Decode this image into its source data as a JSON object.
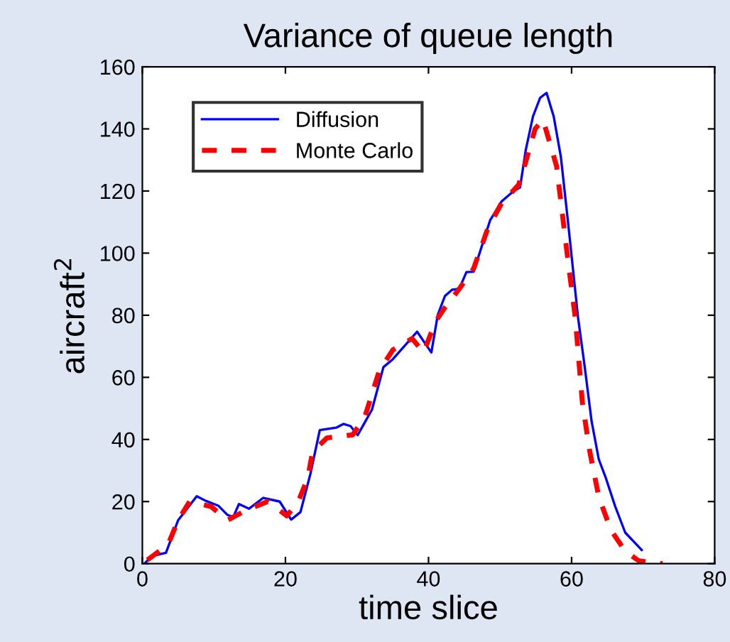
{
  "chart_data": {
    "type": "line",
    "title": "Variance of queue length",
    "xlabel": "time slice",
    "ylabel": "aircraft$^{2}$",
    "xlim": [
      0,
      80
    ],
    "xticks": [
      0,
      20,
      40,
      60,
      80
    ],
    "ylim": [
      0,
      160
    ],
    "yticks": [
      0,
      20,
      40,
      60,
      80,
      100,
      120,
      140,
      160
    ],
    "grid": false,
    "legend": "top left",
    "series": [
      {
        "name": "Diffusion",
        "color": "#0000ff",
        "line_style": "solid",
        "x": [
          0.3,
          1.3,
          3.3,
          5,
          7.6,
          8.9,
          10.6,
          11.9,
          12.7,
          13.5,
          14.9,
          16.9,
          19.2,
          20.8,
          22.1,
          23.5,
          24.8,
          27.1,
          28.1,
          29.1,
          30.1,
          32.1,
          33.7,
          35,
          38.4,
          40.4,
          41.3,
          42.3,
          43.3,
          44.3,
          45.3,
          46.3,
          48.6,
          50.2,
          51.9,
          52.8,
          53.6,
          54.6,
          55.6,
          56.5,
          57.5,
          58.5,
          59.5,
          60.9,
          61.8,
          62.8,
          63.8,
          64.8,
          66.1,
          67.5,
          69.8
        ],
        "values": [
          0,
          2.4,
          3.5,
          14,
          21.7,
          20.2,
          18.7,
          15.7,
          15,
          19.2,
          17.7,
          21.2,
          20,
          14.2,
          16.6,
          29,
          43,
          43.8,
          45,
          44.3,
          41.4,
          49.6,
          63.3,
          65.8,
          74.7,
          68,
          80.2,
          86.2,
          88.2,
          88.5,
          93.9,
          94,
          110.5,
          116.6,
          120,
          121.2,
          133.3,
          144,
          150,
          151.6,
          144,
          131,
          110,
          79.3,
          64,
          45.8,
          33.6,
          27.5,
          18.4,
          10,
          4.4
        ]
      },
      {
        "name": "Monte Carlo",
        "color": "#ff0000",
        "line_style": "dashed",
        "x": [
          0.7,
          3.6,
          5,
          6.6,
          9.6,
          11.9,
          14.5,
          17.5,
          20.2,
          21.8,
          23.1,
          23.8,
          25.8,
          29.4,
          31.1,
          33.1,
          35,
          37.7,
          39.3,
          41,
          42.3,
          44.3,
          46.3,
          48.3,
          50.2,
          52.6,
          53.6,
          54.9,
          56,
          57.9,
          59.5,
          60.5,
          61.5,
          62.5,
          63.8,
          65.5,
          67.5,
          69.4,
          72.7
        ],
        "values": [
          1.2,
          6.2,
          14,
          20,
          18.4,
          14,
          17.2,
          20,
          15.4,
          20,
          27.5,
          36,
          40.5,
          41.5,
          47.3,
          62,
          68.8,
          72.5,
          68,
          78,
          82.5,
          88.5,
          95,
          108,
          116,
          122,
          129.5,
          140,
          143,
          128,
          97.5,
          79.5,
          52,
          36.6,
          21.5,
          10.8,
          4,
          0.9,
          0
        ]
      }
    ]
  }
}
